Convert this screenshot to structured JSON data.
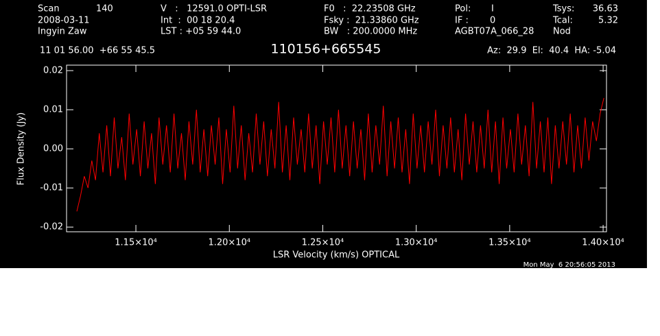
{
  "chart_data": {
    "type": "line",
    "title": "110156+665545",
    "x_label": "LSR Velocity (km/s) OPTICAL",
    "y_label": "Flux Density (Jy)",
    "annotations": [
      "Scan",
      "140",
      "V   :   12591.0 OPTI-LSR",
      "F0   :  22.23508 GHz",
      "Pol:",
      "I",
      "Tsys:",
      "36.63",
      "2008-03-11",
      "Int  :  00 18 20.4",
      "Fsky :  21.33860 GHz",
      "IF :",
      "0",
      "Tcal:",
      "5.32",
      "Ingyin Zaw",
      "LST : +05 59 44.0",
      "BW   : 200.0000 MHz",
      "AGBT07A_066_28",
      "Nod",
      "11 01 56.00  +66 55 45.5",
      "Az:  29.9  El:  40.4  HA: -5.04",
      "Mon May  6 20:56:05 2013"
    ],
    "xlim": [
      11129,
      14018
    ],
    "ylim": [
      -0.0212,
      0.0214
    ],
    "xticks": [
      {
        "value": 11500,
        "label": "1.15×10⁴"
      },
      {
        "value": 12000,
        "label": "1.20×10⁴"
      },
      {
        "value": 12500,
        "label": "1.25×10⁴"
      },
      {
        "value": 13000,
        "label": "1.30×10⁴"
      },
      {
        "value": 13500,
        "label": "1.35×10⁴"
      },
      {
        "value": 14000,
        "label": "1.40×10⁴"
      }
    ],
    "yticks": [
      -0.02,
      -0.01,
      {
        "value": 0,
        "label": "0.00"
      },
      0.01,
      0.02
    ],
    "grid": false,
    "series": [
      {
        "color": "#ff0000",
        "x": [
          11184,
          11204,
          11224,
          11244,
          11264,
          11284,
          11304,
          11324,
          11344,
          11364,
          11384,
          11404,
          11424,
          11444,
          11464,
          11484,
          11504,
          11524,
          11544,
          11564,
          11584,
          11604,
          11624,
          11644,
          11664,
          11684,
          11704,
          11724,
          11744,
          11764,
          11784,
          11804,
          11824,
          11844,
          11864,
          11884,
          11904,
          11924,
          11944,
          11964,
          11984,
          12004,
          12024,
          12044,
          12064,
          12084,
          12104,
          12124,
          12144,
          12164,
          12184,
          12204,
          12224,
          12244,
          12264,
          12284,
          12304,
          12324,
          12344,
          12364,
          12384,
          12404,
          12424,
          12444,
          12464,
          12484,
          12504,
          12524,
          12544,
          12564,
          12584,
          12604,
          12624,
          12644,
          12664,
          12684,
          12704,
          12724,
          12744,
          12764,
          12784,
          12804,
          12824,
          12844,
          12864,
          12884,
          12904,
          12924,
          12944,
          12964,
          12984,
          13004,
          13024,
          13044,
          13064,
          13084,
          13104,
          13124,
          13144,
          13164,
          13184,
          13204,
          13224,
          13244,
          13264,
          13284,
          13304,
          13324,
          13344,
          13364,
          13384,
          13404,
          13424,
          13444,
          13464,
          13484,
          13504,
          13524,
          13544,
          13564,
          13584,
          13604,
          13624,
          13644,
          13664,
          13684,
          13704,
          13724,
          13744,
          13764,
          13784,
          13804,
          13824,
          13844,
          13864,
          13884,
          13904,
          13924,
          13944,
          13964,
          13984,
          14004
        ],
        "values": [
          -0.016,
          -0.012,
          -0.007,
          -0.01,
          -0.003,
          -0.008,
          0.004,
          -0.006,
          0.006,
          -0.007,
          0.008,
          -0.005,
          0.003,
          -0.008,
          0.009,
          -0.004,
          0.005,
          -0.007,
          0.007,
          -0.005,
          0.004,
          -0.009,
          0.008,
          -0.004,
          0.006,
          -0.006,
          0.009,
          -0.005,
          0.004,
          -0.008,
          0.007,
          -0.004,
          0.01,
          -0.006,
          0.005,
          -0.007,
          0.006,
          -0.004,
          0.008,
          -0.009,
          0.005,
          -0.006,
          0.011,
          -0.005,
          0.006,
          -0.008,
          0.004,
          -0.006,
          0.009,
          -0.004,
          0.007,
          -0.007,
          0.005,
          -0.005,
          0.012,
          -0.006,
          0.006,
          -0.008,
          0.008,
          -0.004,
          0.005,
          -0.006,
          0.009,
          -0.005,
          0.006,
          -0.009,
          0.007,
          -0.004,
          0.008,
          -0.006,
          0.01,
          -0.005,
          0.006,
          -0.007,
          0.007,
          -0.005,
          0.005,
          -0.008,
          0.009,
          -0.006,
          0.006,
          -0.004,
          0.011,
          -0.007,
          0.007,
          -0.005,
          0.008,
          -0.006,
          0.005,
          -0.009,
          0.009,
          -0.005,
          0.006,
          -0.006,
          0.007,
          -0.004,
          0.01,
          -0.007,
          0.006,
          -0.005,
          0.008,
          -0.006,
          0.005,
          -0.008,
          0.009,
          -0.004,
          0.007,
          -0.006,
          0.006,
          -0.005,
          0.01,
          -0.006,
          0.007,
          -0.009,
          0.008,
          -0.005,
          0.005,
          -0.006,
          0.009,
          -0.004,
          0.006,
          -0.007,
          0.012,
          -0.005,
          0.007,
          -0.006,
          0.008,
          -0.009,
          0.006,
          -0.005,
          0.007,
          -0.004,
          0.009,
          -0.006,
          0.006,
          -0.005,
          0.008,
          -0.003,
          0.007,
          0.002,
          0.009,
          0.013
        ]
      }
    ]
  }
}
